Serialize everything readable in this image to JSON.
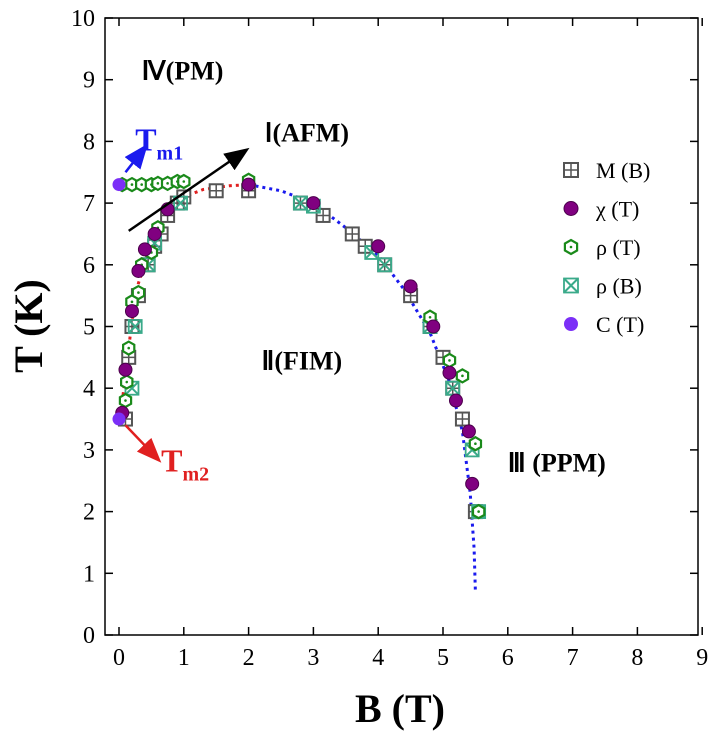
{
  "chart_data": {
    "type": "scatter",
    "title": "",
    "xlabel": "B (T)",
    "ylabel": "T (K)",
    "xlim": [
      0,
      9
    ],
    "ylim": [
      0,
      10
    ],
    "xticks": [
      "0",
      "1",
      "2",
      "3",
      "4",
      "5",
      "6",
      "7",
      "8",
      "9"
    ],
    "yticks": [
      "0",
      "1",
      "2",
      "3",
      "4",
      "5",
      "6",
      "7",
      "8",
      "9",
      "10"
    ],
    "grid": false,
    "legend_position": "right",
    "series": [
      {
        "name": "M (B)",
        "marker": "square-grid",
        "color": "#555555",
        "points": [
          [
            0.1,
            3.5
          ],
          [
            0.15,
            4.5
          ],
          [
            0.2,
            5.0
          ],
          [
            0.3,
            5.5
          ],
          [
            0.45,
            6.0
          ],
          [
            0.55,
            6.3
          ],
          [
            0.65,
            6.5
          ],
          [
            0.75,
            6.8
          ],
          [
            0.9,
            7.0
          ],
          [
            1.0,
            7.1
          ],
          [
            1.5,
            7.2
          ],
          [
            2.0,
            7.2
          ],
          [
            2.8,
            7.0
          ],
          [
            3.15,
            6.8
          ],
          [
            3.6,
            6.5
          ],
          [
            3.8,
            6.3
          ],
          [
            4.1,
            6.0
          ],
          [
            4.5,
            5.5
          ],
          [
            4.8,
            5.0
          ],
          [
            5.0,
            4.5
          ],
          [
            5.15,
            4.0
          ],
          [
            5.3,
            3.5
          ],
          [
            5.5,
            2.0
          ]
        ]
      },
      {
        "name": "χ (T)",
        "marker": "circle",
        "color": "#800080",
        "points": [
          [
            0.05,
            3.6
          ],
          [
            0.1,
            4.3
          ],
          [
            0.2,
            5.25
          ],
          [
            0.3,
            5.9
          ],
          [
            0.4,
            6.25
          ],
          [
            0.55,
            6.5
          ],
          [
            0.75,
            6.9
          ],
          [
            2.0,
            7.3
          ],
          [
            3.0,
            7.0
          ],
          [
            4.0,
            6.3
          ],
          [
            4.5,
            5.65
          ],
          [
            4.85,
            5.0
          ],
          [
            5.1,
            4.25
          ],
          [
            5.2,
            3.8
          ],
          [
            5.4,
            3.3
          ],
          [
            5.45,
            2.45
          ]
        ]
      },
      {
        "name": "ρ (T)",
        "marker": "hexagon",
        "color": "#1a8a1a",
        "points": [
          [
            0.05,
            7.3
          ],
          [
            0.2,
            7.3
          ],
          [
            0.35,
            7.3
          ],
          [
            0.5,
            7.3
          ],
          [
            0.6,
            7.32
          ],
          [
            0.75,
            7.32
          ],
          [
            0.9,
            7.35
          ],
          [
            1.0,
            7.35
          ],
          [
            2.0,
            7.37
          ],
          [
            0.1,
            3.8
          ],
          [
            0.12,
            4.1
          ],
          [
            0.15,
            4.65
          ],
          [
            0.2,
            5.4
          ],
          [
            0.3,
            5.55
          ],
          [
            0.35,
            6.0
          ],
          [
            0.5,
            6.2
          ],
          [
            0.6,
            6.6
          ],
          [
            4.8,
            5.15
          ],
          [
            5.1,
            4.45
          ],
          [
            5.3,
            4.2
          ],
          [
            5.5,
            3.1
          ],
          [
            5.55,
            2.0
          ]
        ]
      },
      {
        "name": "ρ (B)",
        "marker": "cross-box",
        "color": "#3aaa8a",
        "points": [
          [
            0.2,
            4.0
          ],
          [
            0.25,
            5.0
          ],
          [
            0.45,
            6.0
          ],
          [
            0.55,
            6.35
          ],
          [
            0.95,
            7.0
          ],
          [
            2.8,
            7.0
          ],
          [
            3.0,
            6.95
          ],
          [
            3.9,
            6.2
          ],
          [
            4.1,
            6.0
          ],
          [
            4.8,
            5.0
          ],
          [
            5.15,
            4.0
          ],
          [
            5.45,
            3.0
          ],
          [
            5.55,
            2.0
          ]
        ]
      },
      {
        "name": "C (T)",
        "marker": "filled-circle",
        "color": "#7b2ff7",
        "points": [
          [
            0.0,
            7.3
          ],
          [
            0.0,
            3.5
          ]
        ]
      }
    ],
    "boundaries": [
      {
        "color": "#e02020",
        "style": "dotted",
        "points": [
          [
            0.02,
            3.55
          ],
          [
            0.1,
            4.2
          ],
          [
            0.2,
            5.1
          ],
          [
            0.3,
            5.7
          ],
          [
            0.45,
            6.2
          ],
          [
            0.6,
            6.6
          ],
          [
            0.8,
            6.9
          ],
          [
            1.0,
            7.1
          ],
          [
            1.3,
            7.22
          ],
          [
            1.7,
            7.28
          ],
          [
            2.0,
            7.3
          ]
        ]
      },
      {
        "color": "#1a1aee",
        "style": "dotted",
        "points": [
          [
            2.0,
            7.3
          ],
          [
            2.5,
            7.2
          ],
          [
            3.0,
            7.0
          ],
          [
            3.5,
            6.6
          ],
          [
            4.0,
            6.15
          ],
          [
            4.4,
            5.6
          ],
          [
            4.8,
            4.9
          ],
          [
            5.1,
            4.1
          ],
          [
            5.3,
            3.3
          ],
          [
            5.42,
            2.3
          ],
          [
            5.48,
            1.4
          ],
          [
            5.5,
            0.7
          ]
        ]
      }
    ],
    "annotations": {
      "regions": [
        {
          "text": "Ⅳ(PM)",
          "x": 0.35,
          "y": 9.0
        },
        {
          "text": "Ⅰ(AFM)",
          "x": 2.25,
          "y": 8.0
        },
        {
          "text": "Ⅱ(FIM)",
          "x": 2.2,
          "y": 4.3
        },
        {
          "text": "Ⅲ (PPM)",
          "x": 6.0,
          "y": 2.65
        }
      ],
      "tm1": {
        "main": "T",
        "sub": "m1",
        "color": "#1a1aee",
        "x": 0.25,
        "y": 7.85,
        "arrow_from": [
          0.1,
          7.5
        ],
        "arrow_to": [
          0.4,
          7.9
        ]
      },
      "tm2": {
        "main": "T",
        "sub": "m2",
        "color": "#e02020",
        "x": 0.65,
        "y": 2.65,
        "arrow_from": [
          0.1,
          3.4
        ],
        "arrow_to": [
          0.6,
          2.85
        ]
      },
      "afm_arrow": {
        "color": "#000000",
        "from": [
          0.15,
          6.55
        ],
        "to": [
          1.95,
          7.85
        ]
      }
    }
  }
}
